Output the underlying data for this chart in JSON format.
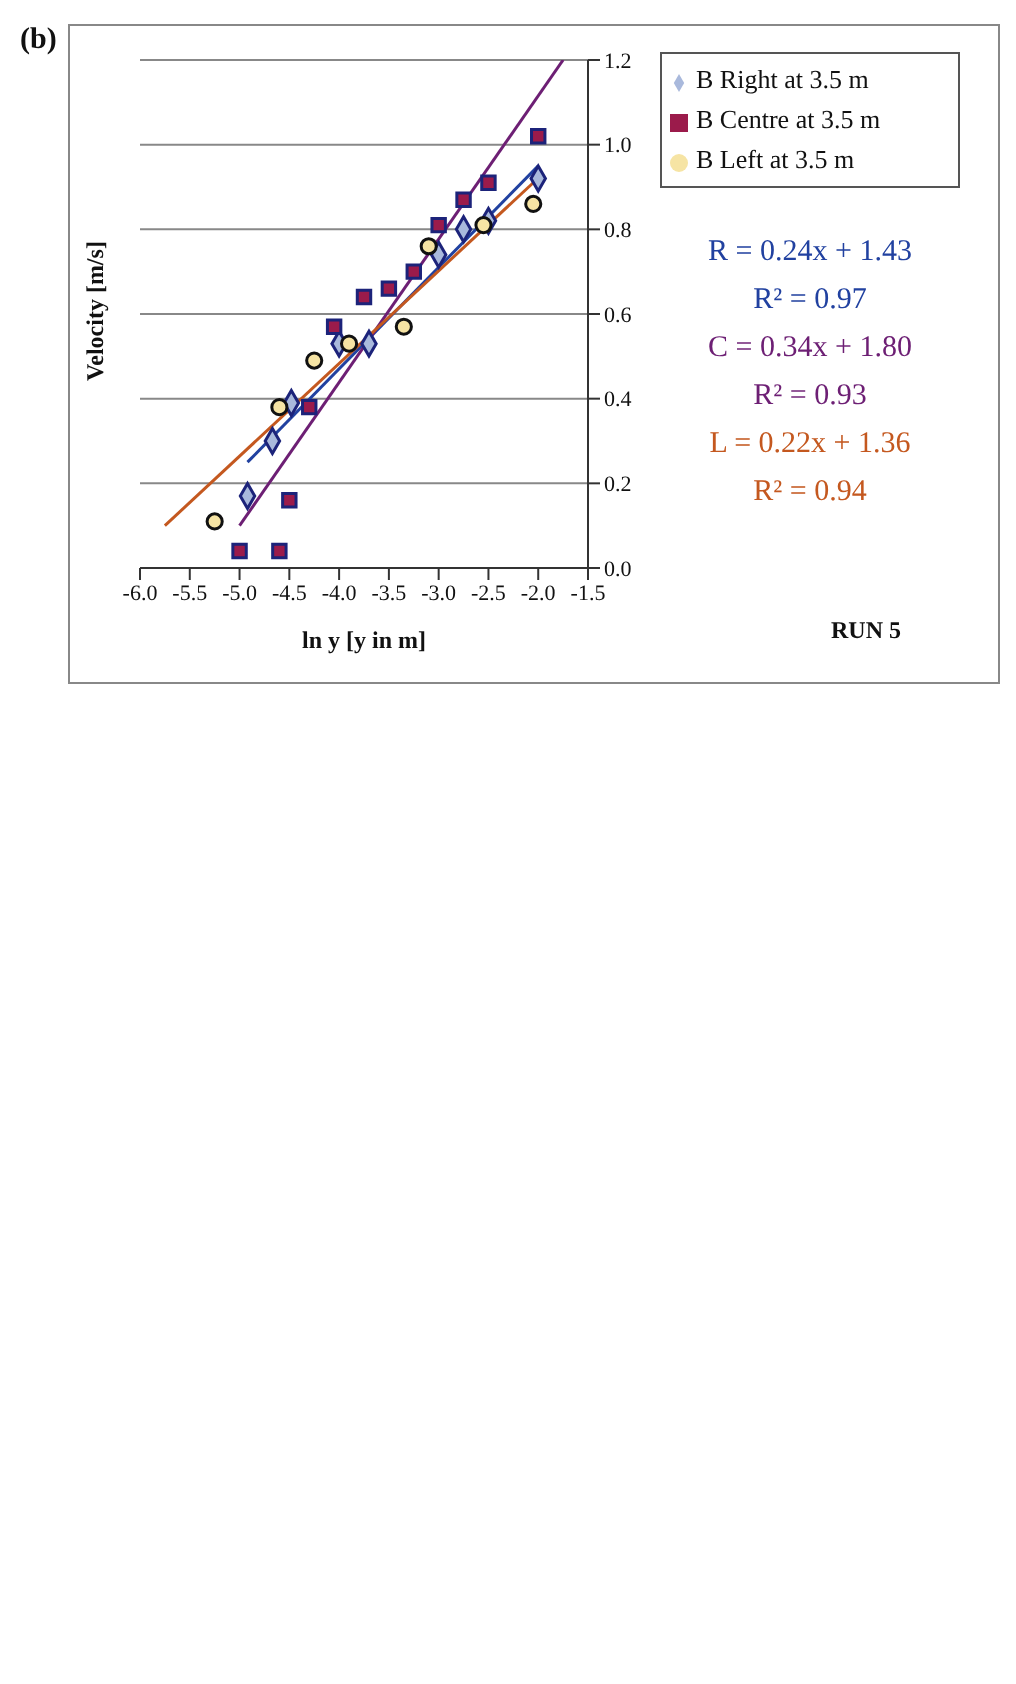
{
  "chart_data": {
    "type": "scatter",
    "title": "RUN 5",
    "xlabel": "ln y [y in m]",
    "ylabel": "Velocity [m/s]",
    "xlim": [
      -6,
      -1.5
    ],
    "xticks": [
      {
        "value": -6,
        "label": "-6.0"
      },
      -5.5,
      {
        "value": -5,
        "label": "-5.0"
      },
      -4.5,
      {
        "value": -4,
        "label": "-4.0"
      },
      -3.5,
      {
        "value": -3,
        "label": "-3.0"
      },
      -2.5,
      {
        "value": -2,
        "label": "-2.0"
      },
      -1.5
    ],
    "ylim": [
      0,
      1.2
    ],
    "yticks": [
      {
        "value": 0,
        "label": "0.0"
      },
      0.2,
      0.4,
      0.6,
      0.8,
      {
        "value": 1,
        "label": "1.0"
      },
      1.2
    ],
    "grid": "y",
    "legend": "top right",
    "series": [
      {
        "name": "B Right at 3.5 m",
        "type": "scatter",
        "marker": "diamond",
        "color": "#a9b9dc",
        "x": [
          -2.0,
          -2.5,
          -2.75,
          -3.0,
          -3.7,
          -4.0,
          -4.48,
          -4.67,
          -4.92
        ],
        "values": [
          0.92,
          0.82,
          0.8,
          0.74,
          0.53,
          0.53,
          0.39,
          0.3,
          0.17
        ]
      },
      {
        "name": "B Centre at 3.5 m",
        "type": "scatter",
        "marker": "square",
        "color": "#9b1b4b",
        "x": [
          -2.0,
          -2.5,
          -2.75,
          -3.0,
          -3.25,
          -3.5,
          -3.75,
          -4.05,
          -4.3,
          -4.5,
          -4.6,
          -5.0
        ],
        "values": [
          1.02,
          0.91,
          0.87,
          0.81,
          0.7,
          0.66,
          0.64,
          0.57,
          0.38,
          0.16,
          0.04,
          0.04
        ]
      },
      {
        "name": "B Left at 3.5 m",
        "type": "scatter",
        "marker": "circle",
        "color": "#f6e4a4",
        "x": [
          -2.05,
          -2.55,
          -3.1,
          -3.35,
          -3.9,
          -4.25,
          -4.6,
          -5.25
        ],
        "values": [
          0.86,
          0.81,
          0.76,
          0.57,
          0.53,
          0.49,
          0.38,
          0.11
        ]
      },
      {
        "type": "line",
        "marker": "none",
        "color": "#2141a0",
        "x": [
          -4.92,
          -2.0
        ],
        "values": [
          0.25,
          0.95
        ]
      },
      {
        "type": "line",
        "marker": "none",
        "color": "#6d1f74",
        "x": [
          -5.0,
          -1.75
        ],
        "values": [
          0.1,
          1.2
        ]
      },
      {
        "type": "line",
        "marker": "none",
        "color": "#c4581f",
        "x": [
          -5.75,
          -2.05
        ],
        "values": [
          0.1,
          0.91
        ]
      }
    ],
    "annotations": [
      "R = 0.24x + 1.43",
      "R² = 0.97",
      "C = 0.34x + 1.80",
      "R² = 0.93",
      "L = 0.22x + 1.36",
      "R² = 0.94",
      "(b)"
    ]
  }
}
